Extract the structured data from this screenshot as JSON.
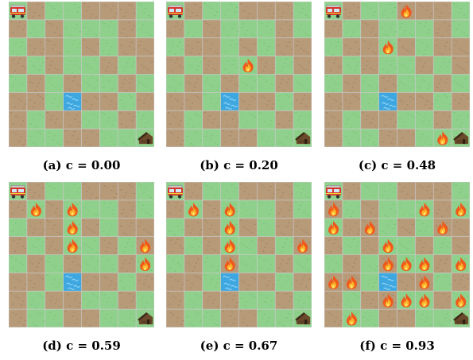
{
  "grid_size": 8,
  "colors": {
    "grass": "#8fd18c",
    "grass_dark": "#76bd72",
    "dirt": "#b79a78",
    "dirt_dark": "#9b7f5f",
    "water": "#3fa7e0",
    "water_light": "#8fd4f5",
    "gridline": "#c9c9c9"
  },
  "base_map": [
    "SDGGDDDG",
    "DGDGGGDG",
    "GDDGDGDD",
    "DGDGGDGD",
    "GDGDGGDG",
    "DDGWDDGD",
    "DGDDGGDG",
    "DGGDDGGC"
  ],
  "icons": {
    "start": "fire-truck-icon",
    "goal": "cabin-icon",
    "water": "water-tile",
    "fire": "fire-icon"
  },
  "panels": [
    {
      "caption": "(a) c = 0.00",
      "fires": []
    },
    {
      "caption": "(b) c = 0.20",
      "fires": [
        [
          3,
          4
        ]
      ]
    },
    {
      "caption": "(c) c = 0.48",
      "fires": [
        [
          0,
          4
        ],
        [
          2,
          3
        ],
        [
          7,
          6
        ]
      ]
    },
    {
      "caption": "(d) c = 0.59",
      "fires": [
        [
          1,
          1
        ],
        [
          1,
          3
        ],
        [
          2,
          3
        ],
        [
          3,
          3
        ],
        [
          3,
          7
        ],
        [
          4,
          7
        ]
      ]
    },
    {
      "caption": "(e) c = 0.67",
      "fires": [
        [
          1,
          1
        ],
        [
          1,
          3
        ],
        [
          2,
          3
        ],
        [
          3,
          3
        ],
        [
          4,
          3
        ],
        [
          3,
          7
        ]
      ]
    },
    {
      "caption": "(f) c = 0.93",
      "fires": [
        [
          1,
          0
        ],
        [
          1,
          5
        ],
        [
          1,
          7
        ],
        [
          2,
          0
        ],
        [
          2,
          2
        ],
        [
          2,
          6
        ],
        [
          3,
          3
        ],
        [
          4,
          3
        ],
        [
          4,
          4
        ],
        [
          4,
          5
        ],
        [
          4,
          7
        ],
        [
          5,
          0
        ],
        [
          5,
          1
        ],
        [
          5,
          5
        ],
        [
          6,
          3
        ],
        [
          6,
          4
        ],
        [
          6,
          5
        ],
        [
          6,
          7
        ],
        [
          7,
          1
        ]
      ]
    }
  ]
}
